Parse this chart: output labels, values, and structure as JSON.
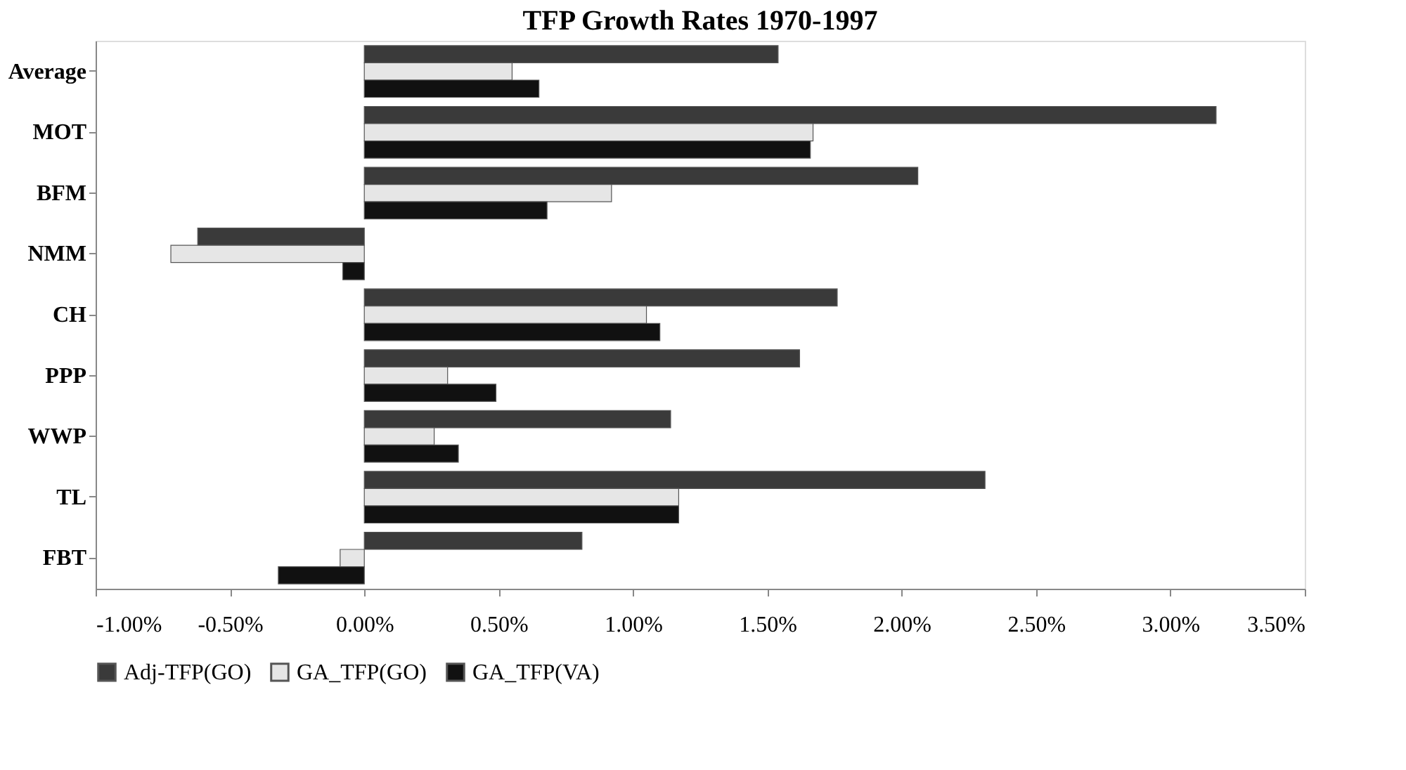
{
  "chart_data": {
    "type": "bar",
    "orientation": "horizontal",
    "title": "TFP Growth Rates 1970-1997",
    "categories": [
      "Average",
      "MOT",
      "BFM",
      "NMM",
      "CH",
      "PPP",
      "WWP",
      "TL",
      "FBT"
    ],
    "series": [
      {
        "name": "Adj-TFP(GO)",
        "color": "#3a3a3a",
        "values": [
          1.54,
          3.17,
          2.06,
          -0.62,
          1.76,
          1.62,
          1.14,
          2.31,
          0.81
        ]
      },
      {
        "name": "GA_TFP(GO)",
        "color": "#e6e6e6",
        "values": [
          0.55,
          1.67,
          0.92,
          -0.72,
          1.05,
          0.31,
          0.26,
          1.17,
          -0.09
        ]
      },
      {
        "name": "GA_TFP(VA)",
        "color": "#111111",
        "values": [
          0.65,
          1.66,
          0.68,
          -0.08,
          1.1,
          0.49,
          0.35,
          1.17,
          -0.32
        ]
      }
    ],
    "xlim": [
      -1,
      3.5
    ],
    "xticks": [
      {
        "value": -1,
        "label": "-1.00%"
      },
      {
        "value": -0.5,
        "label": "-0.50%"
      },
      {
        "value": 0,
        "label": "0.00%"
      },
      {
        "value": 0.5,
        "label": "0.50%"
      },
      {
        "value": 1,
        "label": "1.00%"
      },
      {
        "value": 1.5,
        "label": "1.50%"
      },
      {
        "value": 2,
        "label": "2.00%"
      },
      {
        "value": 2.5,
        "label": "2.50%"
      },
      {
        "value": 3,
        "label": "3.00%"
      },
      {
        "value": 3.5,
        "label": "3.50%"
      }
    ],
    "grid": false,
    "legend": "bottom"
  }
}
